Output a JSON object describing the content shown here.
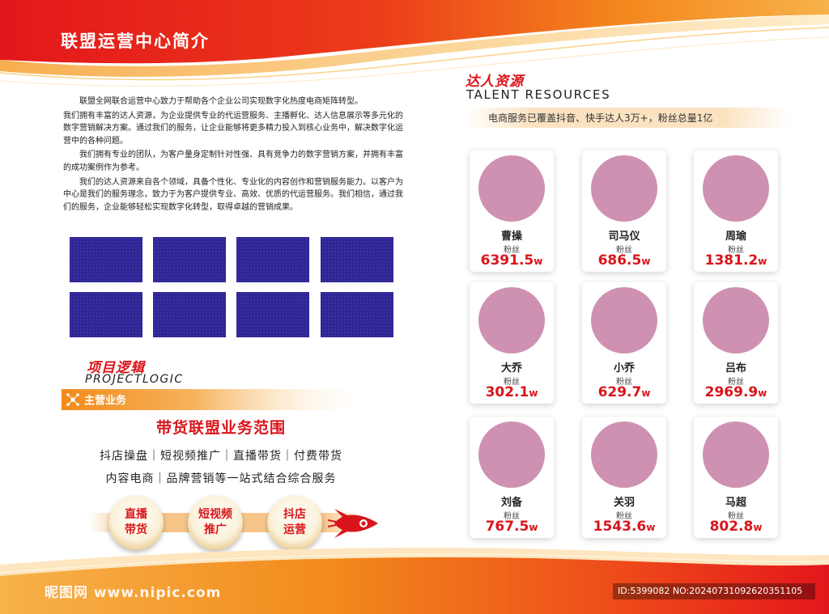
{
  "page": {
    "title": "联盟运营中心简介"
  },
  "intro": {
    "paragraphs": [
      "联盟全网联合运营中心致力于帮助各个企业公司实现数字化热度电商矩阵转型。",
      "我们拥有丰富的达人资源，为企业提供专业的代运营服务、主播孵化、达人信息展示等多元化的数字营销解决方案。通过我们的服务，让企业能够将更多精力投入到核心业务中，解决数字化运营中的各种问题。",
      "我们拥有专业的团队，为客户量身定制针对性强、具有竞争力的数字营销方案，并拥有丰富的成功案例作为参考。",
      "我们的达人资源来自各个领域，具备个性化、专业化的内容创作和营销服务能力。以客户为中心是我们的服务理念，致力于为客户提供专业、高效、优质的代运营服务。我们相信，通过我们的服务，企业能够轻松实现数字化转型，取得卓越的营销成果。"
    ]
  },
  "project_logic": {
    "title": "项目逻辑",
    "subtitle": "PROJECTLOGIC",
    "business_label": "主营业务",
    "scope_title": "带货联盟业务范围",
    "scope_line1": "抖店操盘｜短视频推广｜直播带货｜付费带货",
    "scope_line2": "内容电商｜品牌营销等一站式结合综合服务",
    "medals": [
      {
        "line1": "直播",
        "line2": "带货"
      },
      {
        "line1": "短视频",
        "line2": "推广"
      },
      {
        "line1": "抖店",
        "line2": "运营"
      }
    ]
  },
  "talent": {
    "title": "达人资源",
    "subtitle": "TALENT RESOURCES",
    "description": "电商服务已覆盖抖音、快手达人3万+，粉丝总量1亿",
    "fans_label": "粉丝",
    "unit": "w",
    "cards": [
      {
        "name": "曹操",
        "fans": "6391.5"
      },
      {
        "name": "司马仪",
        "fans": "686.5"
      },
      {
        "name": "周瑜",
        "fans": "1381.2"
      },
      {
        "name": "大乔",
        "fans": "302.1"
      },
      {
        "name": "小乔",
        "fans": "629.7"
      },
      {
        "name": "吕布",
        "fans": "2969.9"
      },
      {
        "name": "刘备",
        "fans": "767.5"
      },
      {
        "name": "关羽",
        "fans": "1543.6"
      },
      {
        "name": "马超",
        "fans": "802.8"
      }
    ]
  },
  "watermark": {
    "site": "昵图网 www.nipic.com",
    "id": "ID:5399082 NO:20240731092620351105"
  },
  "colors": {
    "brand_red": "#d9151b",
    "orange": "#f28a1c",
    "photo_blue": "#2f2596",
    "avatar_pink": "#cf91b2"
  }
}
